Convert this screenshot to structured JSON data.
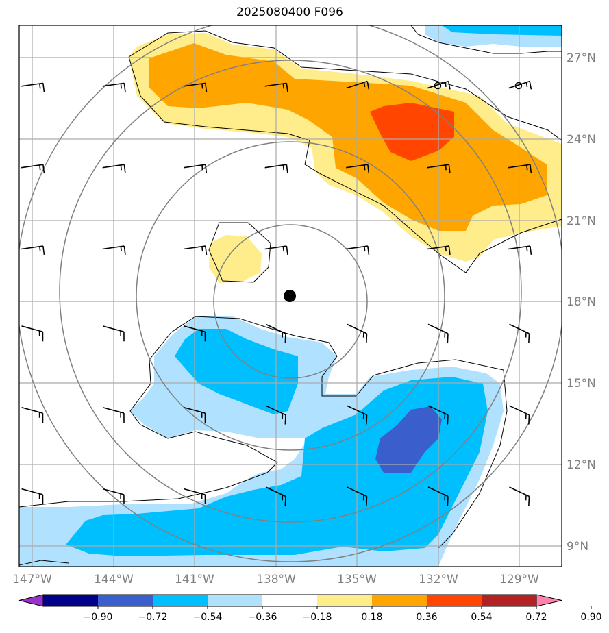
{
  "title": "2025080400 F096",
  "axes": {
    "lon_ticks": [
      "147°W",
      "144°W",
      "141°W",
      "138°W",
      "135°W",
      "132°W",
      "129°W"
    ],
    "lat_ticks": [
      "27°N",
      "24°N",
      "21°N",
      "18°N",
      "15°N",
      "12°N",
      "9°N"
    ]
  },
  "colorbar": {
    "labels": [
      "−0.90",
      "−0.72",
      "−0.54",
      "−0.36",
      "−0.18",
      "0.18",
      "0.36",
      "0.54",
      "0.72",
      "0.90"
    ],
    "colors": [
      "#9932CC",
      "#00008B",
      "#3A5FCD",
      "#00BFFF",
      "#B0E2FF",
      "#FFFFFF",
      "#FFEC8B",
      "#FFA500",
      "#FF4500",
      "#B22222",
      "#FF82AB"
    ]
  },
  "chart_data": {
    "type": "map",
    "title": "2025080400 F096",
    "lon_range": [
      -147.9,
      -127.9
    ],
    "lat_range": [
      8.3,
      28.2
    ],
    "storm_center": {
      "lon": -137.8,
      "lat": 18.2
    },
    "range_rings_deg": [
      3,
      6,
      9
    ],
    "colorbar_levels": [
      -0.9,
      -0.72,
      -0.54,
      -0.36,
      -0.18,
      0.18,
      0.36,
      0.54,
      0.72,
      0.9
    ],
    "fill_colors": {
      "light_yellow": "#FFEC8B",
      "orange": "#FFA500",
      "red_orange": "#FF4500",
      "light_blue": "#B0E2FF",
      "deep_sky_blue": "#00BFFF",
      "royal_blue": "#3A5FCD"
    },
    "wind_barbs_grid": {
      "lons": [
        -147,
        -144,
        -141,
        -138,
        -135,
        -132,
        -129
      ],
      "lats": [
        26,
        23,
        20,
        17,
        14,
        11
      ]
    },
    "calm_markers": [
      {
        "lon": -132,
        "lat": 26
      },
      {
        "lon": -129,
        "lat": 26
      }
    ]
  }
}
